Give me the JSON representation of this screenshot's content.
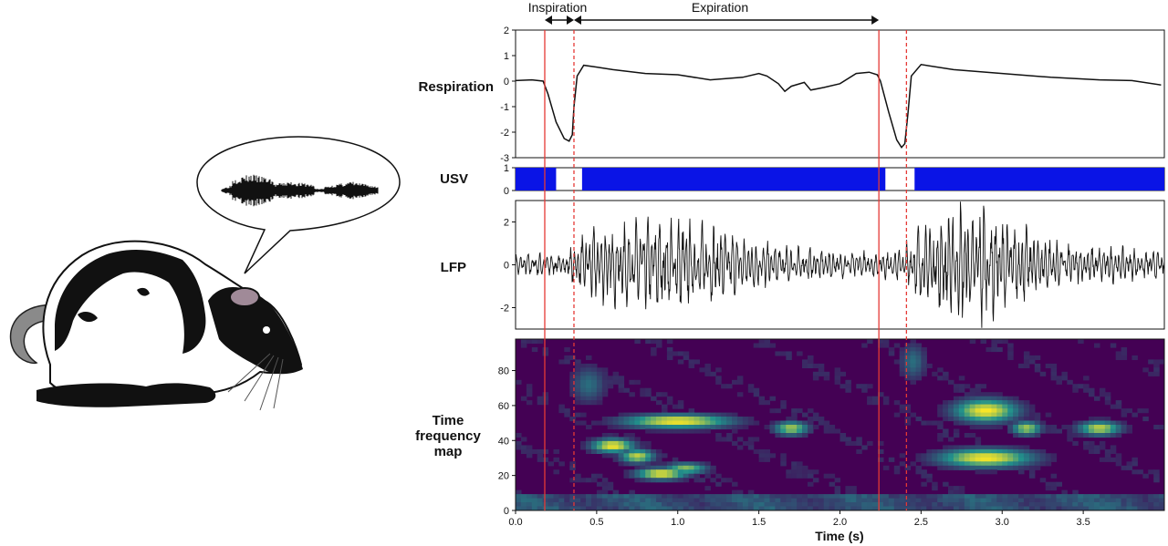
{
  "labels": {
    "respiration": "Respiration",
    "usv": "USV",
    "lfp": "LFP",
    "tf_line1": "Time",
    "tf_line2": "frequency",
    "tf_line3": "map",
    "inspiration": "Inspiration",
    "expiration": "Expiration",
    "xlabel": "Time (s)"
  },
  "colors": {
    "trace": "#111111",
    "marker": "#e53935",
    "usv_fill": "#0a14e6",
    "heat_low": "#440154",
    "heat_mid": "#21918c",
    "heat_high": "#fde725"
  },
  "icons": {
    "rat": "rat-illustration",
    "speech": "speech-bubble-icon"
  },
  "chart_data": [
    {
      "type": "line",
      "name": "respiration",
      "ylabel": "Respiration",
      "ylim": [
        -3,
        2
      ],
      "yticks": [
        2,
        1,
        0,
        -1,
        -2,
        -3
      ],
      "xlim": [
        0,
        4
      ],
      "x": [
        0,
        0.1,
        0.17,
        0.2,
        0.25,
        0.3,
        0.33,
        0.35,
        0.36,
        0.38,
        0.42,
        0.5,
        0.6,
        0.8,
        1.0,
        1.2,
        1.4,
        1.5,
        1.55,
        1.62,
        1.66,
        1.7,
        1.78,
        1.82,
        1.9,
        2.0,
        2.1,
        2.18,
        2.23,
        2.25,
        2.3,
        2.35,
        2.38,
        2.4,
        2.42,
        2.44,
        2.5,
        2.7,
        3.0,
        3.3,
        3.6,
        3.8,
        3.98
      ],
      "y": [
        0.02,
        0.05,
        0.0,
        -0.5,
        -1.6,
        -2.25,
        -2.35,
        -2.1,
        -1.0,
        0.2,
        0.62,
        0.55,
        0.45,
        0.3,
        0.25,
        0.05,
        0.15,
        0.3,
        0.2,
        -0.1,
        -0.4,
        -0.2,
        -0.05,
        -0.35,
        -0.25,
        -0.1,
        0.3,
        0.35,
        0.25,
        0.0,
        -1.2,
        -2.3,
        -2.6,
        -2.45,
        -1.2,
        0.2,
        0.65,
        0.45,
        0.3,
        0.15,
        0.05,
        0.02,
        -0.15
      ]
    },
    {
      "type": "area",
      "name": "usv",
      "ylabel": "USV",
      "ylim": [
        0,
        1
      ],
      "yticks": [
        1,
        0
      ],
      "xlim": [
        0,
        4
      ],
      "on_segments": [
        [
          0.0,
          0.25
        ],
        [
          0.41,
          2.28
        ],
        [
          2.46,
          4.0
        ]
      ]
    },
    {
      "type": "line",
      "name": "lfp",
      "ylabel": "LFP",
      "ylim": [
        -3,
        3
      ],
      "yticks": [
        2,
        0,
        -2
      ],
      "xlim": [
        0,
        4
      ],
      "envelope": {
        "x": [
          0,
          0.3,
          0.36,
          0.45,
          0.7,
          0.9,
          1.1,
          1.3,
          1.6,
          2.0,
          2.3,
          2.4,
          2.5,
          2.7,
          2.9,
          3.1,
          3.4,
          3.7,
          3.98
        ],
        "amplitude": [
          0.5,
          0.6,
          0.9,
          1.6,
          1.9,
          2.1,
          2.2,
          1.5,
          0.9,
          0.6,
          0.6,
          0.9,
          2.0,
          2.6,
          2.8,
          1.8,
          0.9,
          0.8,
          0.6
        ]
      }
    },
    {
      "type": "heatmap",
      "name": "time-frequency-map",
      "ylim": [
        0,
        100
      ],
      "yticks": [
        80,
        60,
        40,
        20,
        0
      ],
      "xlim": [
        0,
        4
      ],
      "xticks": [
        0.0,
        0.5,
        1.0,
        1.5,
        2.0,
        2.5,
        3.0,
        3.5
      ],
      "xlabel": "Time (s)",
      "hotspots": [
        {
          "x": 0.6,
          "y": 37,
          "sx": 0.1,
          "sy": 3,
          "v": 1.0
        },
        {
          "x": 0.75,
          "y": 31,
          "sx": 0.08,
          "sy": 3,
          "v": 0.9
        },
        {
          "x": 0.9,
          "y": 21,
          "sx": 0.12,
          "sy": 2.5,
          "v": 1.0
        },
        {
          "x": 1.05,
          "y": 24,
          "sx": 0.1,
          "sy": 2.5,
          "v": 0.8
        },
        {
          "x": 1.0,
          "y": 51,
          "sx": 0.25,
          "sy": 3,
          "v": 1.0
        },
        {
          "x": 1.7,
          "y": 47,
          "sx": 0.08,
          "sy": 3,
          "v": 0.85
        },
        {
          "x": 2.9,
          "y": 57,
          "sx": 0.15,
          "sy": 5,
          "v": 1.0
        },
        {
          "x": 2.9,
          "y": 30,
          "sx": 0.22,
          "sy": 4,
          "v": 1.0
        },
        {
          "x": 3.15,
          "y": 47,
          "sx": 0.07,
          "sy": 3,
          "v": 0.85
        },
        {
          "x": 3.6,
          "y": 47,
          "sx": 0.1,
          "sy": 3,
          "v": 0.9
        },
        {
          "x": 0.45,
          "y": 72,
          "sx": 0.08,
          "sy": 8,
          "v": 0.45
        },
        {
          "x": 2.45,
          "y": 85,
          "sx": 0.06,
          "sy": 8,
          "v": 0.45
        }
      ]
    }
  ],
  "events": {
    "inspiration_onsets": [
      0.18,
      2.24
    ],
    "expiration_onsets": [
      0.36,
      2.41
    ],
    "inspiration_span": [
      0.18,
      0.36
    ],
    "expiration_span": [
      0.36,
      2.24
    ]
  }
}
